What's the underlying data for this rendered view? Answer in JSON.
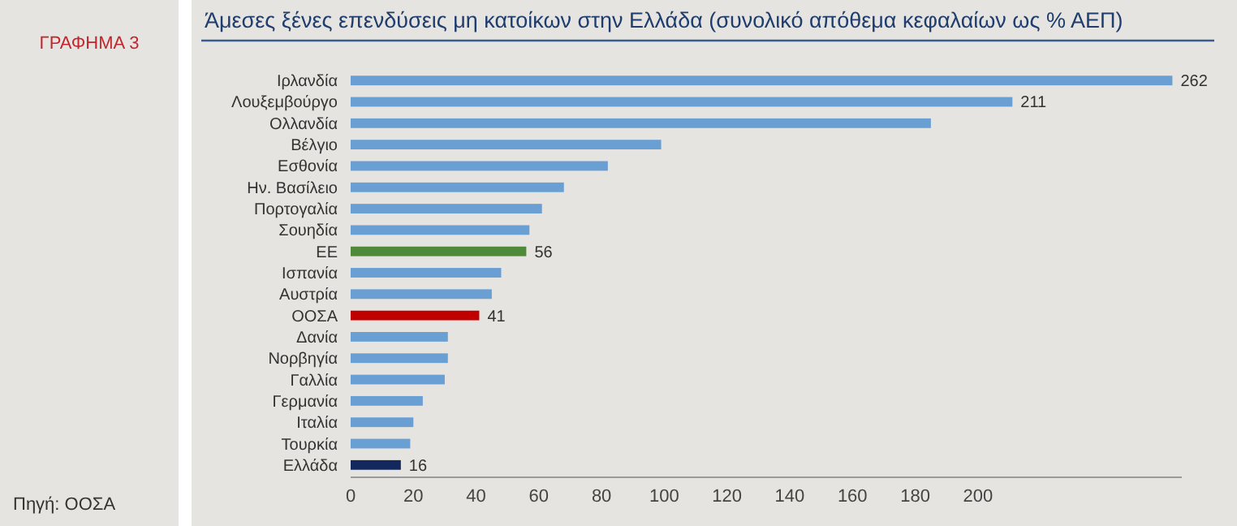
{
  "chart_data": {
    "type": "bar",
    "orientation": "horizontal",
    "title": "Άμεσες ξένες επενδύσεις μη κατοίκων στην Ελλάδα (συνολικό απόθεμα κεφαλαίων ως % ΑΕΠ)",
    "annotations": [
      "ΓΡΑΦΗΜΑ 3",
      "Πηγή: ΟΟΣΑ"
    ],
    "categories": [
      "Ιρλανδία",
      "Λουξεμβούργο",
      "Ολλανδία",
      "Βέλγιο",
      "Εσθονία",
      "Ην. Βασίλειο",
      "Πορτογαλία",
      "Σουηδία",
      "ΕΕ",
      "Ισπανία",
      "Αυστρία",
      "ΟΟΣΑ",
      "Δανία",
      "Νορβηγία",
      "Γαλλία",
      "Γερμανία",
      "Ιταλία",
      "Τουρκία",
      "Ελλάδα"
    ],
    "values": [
      262,
      211,
      185,
      99,
      82,
      68,
      61,
      57,
      56,
      48,
      45,
      41,
      31,
      31,
      30,
      23,
      20,
      19,
      16
    ],
    "value_labels": [
      "262",
      "211",
      null,
      null,
      null,
      null,
      null,
      null,
      "56",
      null,
      null,
      "41",
      null,
      null,
      null,
      null,
      null,
      null,
      "16"
    ],
    "colors": [
      "#6a9fd4",
      "#6a9fd4",
      "#6a9fd4",
      "#6a9fd4",
      "#6a9fd4",
      "#6a9fd4",
      "#6a9fd4",
      "#6a9fd4",
      "#4f8a3a",
      "#6a9fd4",
      "#6a9fd4",
      "#c00000",
      "#6a9fd4",
      "#6a9fd4",
      "#6a9fd4",
      "#6a9fd4",
      "#6a9fd4",
      "#6a9fd4",
      "#13285c"
    ],
    "xlim": [
      0,
      265
    ],
    "xticks": [
      0,
      20,
      40,
      60,
      80,
      100,
      120,
      140,
      160,
      180,
      200
    ],
    "grid": false
  }
}
